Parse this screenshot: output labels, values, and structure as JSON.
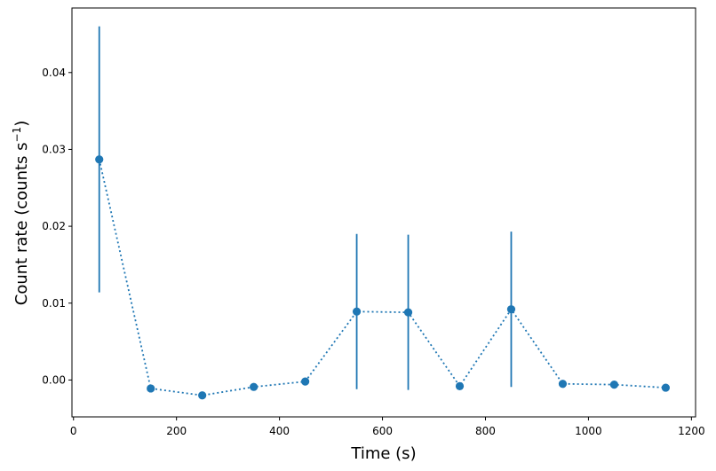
{
  "chart_data": {
    "type": "scatter",
    "title": "",
    "xlabel": "Time (s)",
    "ylabel": {
      "text": "Count rate (counts s",
      "superscript": "−1",
      "suffix": ")"
    },
    "xlim": [
      -3,
      1208
    ],
    "ylim": [
      -0.0048,
      0.0484
    ],
    "xticks": [
      0,
      200,
      400,
      600,
      800,
      1000,
      1200
    ],
    "xtick_labels": [
      "0",
      "200",
      "400",
      "600",
      "800",
      "1000",
      "1200"
    ],
    "yticks": [
      0.0,
      0.01,
      0.02,
      0.03,
      0.04
    ],
    "ytick_labels": [
      "0.00",
      "0.01",
      "0.02",
      "0.03",
      "0.04"
    ],
    "grid": false,
    "legend": "none",
    "series": [
      {
        "color": "#1f77b4",
        "line_style": "dotted",
        "marker": "circle",
        "points": [
          {
            "x": 50,
            "y": 0.0287,
            "yerr": 0.0173
          },
          {
            "x": 150,
            "y": -0.0011,
            "yerr": null
          },
          {
            "x": 250,
            "y": -0.002,
            "yerr": null
          },
          {
            "x": 350,
            "y": -0.0009,
            "yerr": null
          },
          {
            "x": 450,
            "y": -0.0002,
            "yerr": null
          },
          {
            "x": 550,
            "y": 0.0089,
            "yerr": 0.0101
          },
          {
            "x": 650,
            "y": 0.0088,
            "yerr": 0.0101
          },
          {
            "x": 750,
            "y": -0.0008,
            "yerr": null
          },
          {
            "x": 850,
            "y": 0.0092,
            "yerr": 0.0101
          },
          {
            "x": 950,
            "y": -0.0005,
            "yerr": null
          },
          {
            "x": 1050,
            "y": -0.0006,
            "yerr": null
          },
          {
            "x": 1150,
            "y": -0.001,
            "yerr": null
          }
        ]
      }
    ]
  }
}
